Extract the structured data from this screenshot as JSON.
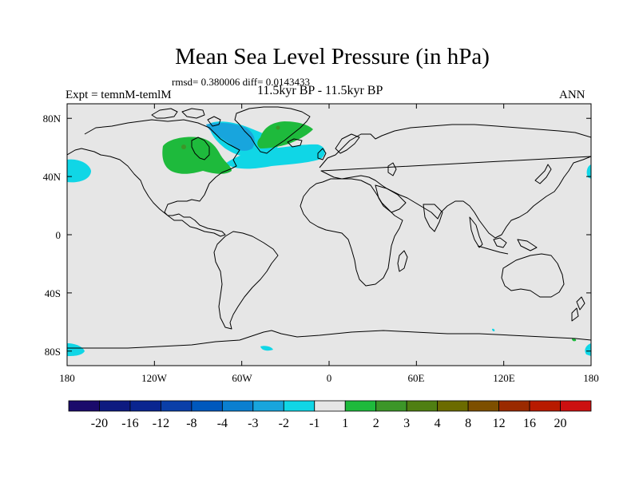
{
  "chart_data": {
    "type": "heatmap",
    "title": "Mean Sea Level Pressure (in hPa)",
    "stats_line": "rmsd= 0.380006 diff= 0.0143433",
    "subtitle": "11.5kyr BP - 11.5kyr BP",
    "left_label": "Expt = temnM-temlM",
    "right_label": "ANN",
    "x_ticks": [
      "180",
      "120W",
      "60W",
      "0",
      "60E",
      "120E",
      "180"
    ],
    "y_ticks": [
      "80N",
      "40N",
      "0",
      "40S",
      "80S"
    ],
    "xlim": [
      -180,
      180
    ],
    "ylim": [
      -90,
      90
    ],
    "colorbar": {
      "labels": [
        "-20",
        "-16",
        "-12",
        "-8",
        "-4",
        "-3",
        "-2",
        "-1",
        "1",
        "2",
        "3",
        "4",
        "8",
        "12",
        "16",
        "20"
      ],
      "colors": [
        "#1a0a6b",
        "#0d1a80",
        "#0a2590",
        "#0a3fa8",
        "#0058bd",
        "#0a7fd0",
        "#18a5dd",
        "#10d6e6",
        "#e6e6e6",
        "#1eba3c",
        "#3c9628",
        "#4f7f12",
        "#6b6b00",
        "#7d4f00",
        "#9a2a00",
        "#b81a00",
        "#cc1010"
      ]
    },
    "anomaly_regions": [
      {
        "name": "north-america-positive",
        "level": "1 to 2",
        "lon": [
          -118,
          -68
        ],
        "lat": [
          42,
          67
        ]
      },
      {
        "name": "labrador-sea-negative",
        "level": "-2 to -1",
        "lon": [
          -85,
          -40
        ],
        "lat": [
          48,
          80
        ]
      },
      {
        "name": "greenland-positive",
        "level": "1 to 2",
        "lon": [
          -48,
          -12
        ],
        "lat": [
          64,
          82
        ]
      },
      {
        "name": "north-atlantic-negative",
        "level": "-1 to 1",
        "lon": [
          -55,
          -2
        ],
        "lat": [
          47,
          62
        ]
      },
      {
        "name": "north-pacific-negative",
        "level": "-1 to 1",
        "lon": [
          -180,
          -166
        ],
        "lat": [
          35,
          50
        ]
      },
      {
        "name": "southern-ocean-negative",
        "level": "-1 to 1",
        "lon": [
          -180,
          -165
        ],
        "lat": [
          -86,
          -78
        ]
      }
    ],
    "background_level": "-1 to 1"
  }
}
